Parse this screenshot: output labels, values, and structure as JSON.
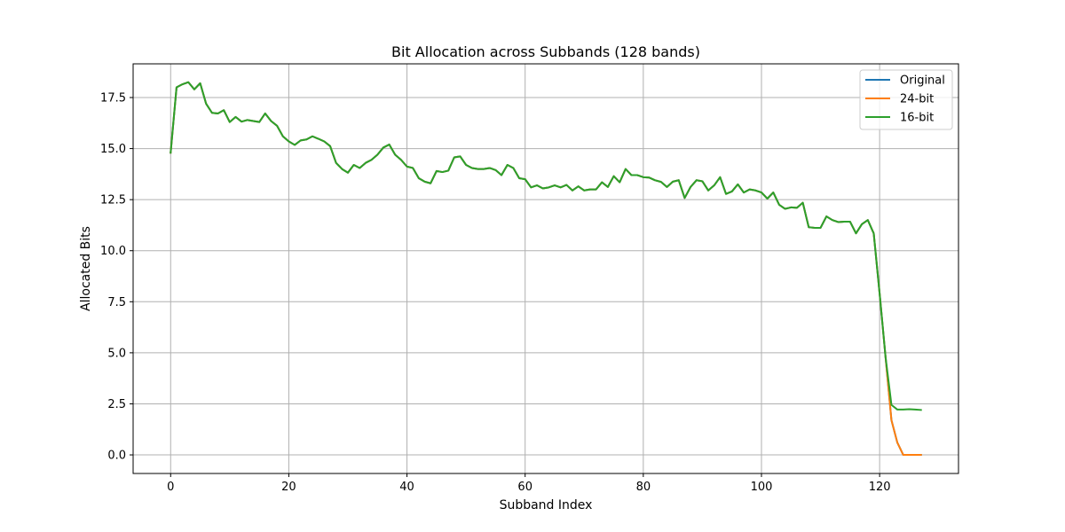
{
  "chart_data": {
    "type": "line",
    "title": "Bit Allocation across Subbands (128 bands)",
    "xlabel": "Subband Index",
    "ylabel": "Allocated Bits",
    "xlim": [
      -6.35,
      133.35
    ],
    "ylim": [
      -0.91,
      19.15
    ],
    "xticks": [
      0,
      20,
      40,
      60,
      80,
      100,
      120
    ],
    "yticks": [
      0.0,
      2.5,
      5.0,
      7.5,
      10.0,
      12.5,
      15.0,
      17.5
    ],
    "xtick_labels": [
      "0",
      "20",
      "40",
      "60",
      "80",
      "100",
      "120"
    ],
    "ytick_labels": [
      "0.0",
      "2.5",
      "5.0",
      "7.5",
      "10.0",
      "12.5",
      "15.0",
      "17.5"
    ],
    "grid": true,
    "legend_position": "top-right",
    "x": [
      0,
      1,
      2,
      3,
      4,
      5,
      6,
      7,
      8,
      9,
      10,
      11,
      12,
      13,
      14,
      15,
      16,
      17,
      18,
      19,
      20,
      21,
      22,
      23,
      24,
      25,
      26,
      27,
      28,
      29,
      30,
      31,
      32,
      33,
      34,
      35,
      36,
      37,
      38,
      39,
      40,
      41,
      42,
      43,
      44,
      45,
      46,
      47,
      48,
      49,
      50,
      51,
      52,
      53,
      54,
      55,
      56,
      57,
      58,
      59,
      60,
      61,
      62,
      63,
      64,
      65,
      66,
      67,
      68,
      69,
      70,
      71,
      72,
      73,
      74,
      75,
      76,
      77,
      78,
      79,
      80,
      81,
      82,
      83,
      84,
      85,
      86,
      87,
      88,
      89,
      90,
      91,
      92,
      93,
      94,
      95,
      96,
      97,
      98,
      99,
      100,
      101,
      102,
      103,
      104,
      105,
      106,
      107,
      108,
      109,
      110,
      111,
      112,
      113,
      114,
      115,
      116,
      117,
      118,
      119,
      120,
      121,
      122,
      123,
      124,
      125,
      126,
      127
    ],
    "series": [
      {
        "name": "Original",
        "color": "#1f77b4",
        "values": [
          14.8,
          18.0,
          18.15,
          18.25,
          17.9,
          18.2,
          17.2,
          16.75,
          16.72,
          16.88,
          16.3,
          16.55,
          16.32,
          16.4,
          16.35,
          16.3,
          16.72,
          16.35,
          16.12,
          15.6,
          15.35,
          15.18,
          15.4,
          15.45,
          15.6,
          15.48,
          15.35,
          15.12,
          14.3,
          14.0,
          13.82,
          14.2,
          14.05,
          14.3,
          14.45,
          14.7,
          15.05,
          15.2,
          14.7,
          14.45,
          14.12,
          14.05,
          13.55,
          13.38,
          13.3,
          13.9,
          13.85,
          13.92,
          14.57,
          14.62,
          14.2,
          14.05,
          14.0,
          14.0,
          14.05,
          13.95,
          13.7,
          14.2,
          14.05,
          13.55,
          13.5,
          13.1,
          13.2,
          13.05,
          13.1,
          13.2,
          13.1,
          13.22,
          12.95,
          13.15,
          12.95,
          13.0,
          13.0,
          13.35,
          13.12,
          13.65,
          13.35,
          14.0,
          13.7,
          13.7,
          13.6,
          13.58,
          13.45,
          13.37,
          13.12,
          13.38,
          13.45,
          12.58,
          13.12,
          13.45,
          13.4,
          12.95,
          13.2,
          13.6,
          12.78,
          12.9,
          13.25,
          12.85,
          13.0,
          12.95,
          12.85,
          12.55,
          12.85,
          12.25,
          12.05,
          12.12,
          12.1,
          12.35,
          11.15,
          11.12,
          11.12,
          11.68,
          11.5,
          11.4,
          11.42,
          11.42,
          10.85,
          11.3,
          11.5,
          10.85,
          7.9,
          4.8,
          1.7,
          0.6,
          0.0,
          0.0,
          0.0,
          0.0
        ]
      },
      {
        "name": "24-bit",
        "color": "#ff7f0e",
        "values": [
          14.8,
          18.0,
          18.15,
          18.25,
          17.9,
          18.2,
          17.2,
          16.75,
          16.72,
          16.88,
          16.3,
          16.55,
          16.32,
          16.4,
          16.35,
          16.3,
          16.72,
          16.35,
          16.12,
          15.6,
          15.35,
          15.18,
          15.4,
          15.45,
          15.6,
          15.48,
          15.35,
          15.12,
          14.3,
          14.0,
          13.82,
          14.2,
          14.05,
          14.3,
          14.45,
          14.7,
          15.05,
          15.2,
          14.7,
          14.45,
          14.12,
          14.05,
          13.55,
          13.38,
          13.3,
          13.9,
          13.85,
          13.92,
          14.57,
          14.62,
          14.2,
          14.05,
          14.0,
          14.0,
          14.05,
          13.95,
          13.7,
          14.2,
          14.05,
          13.55,
          13.5,
          13.1,
          13.2,
          13.05,
          13.1,
          13.2,
          13.1,
          13.22,
          12.95,
          13.15,
          12.95,
          13.0,
          13.0,
          13.35,
          13.12,
          13.65,
          13.35,
          14.0,
          13.7,
          13.7,
          13.6,
          13.58,
          13.45,
          13.37,
          13.12,
          13.38,
          13.45,
          12.58,
          13.12,
          13.45,
          13.4,
          12.95,
          13.2,
          13.6,
          12.78,
          12.9,
          13.25,
          12.85,
          13.0,
          12.95,
          12.85,
          12.55,
          12.85,
          12.25,
          12.05,
          12.12,
          12.1,
          12.35,
          11.15,
          11.12,
          11.12,
          11.68,
          11.5,
          11.4,
          11.42,
          11.42,
          10.85,
          11.3,
          11.5,
          10.85,
          7.9,
          4.8,
          1.7,
          0.6,
          0.0,
          0.0,
          0.0,
          0.0
        ]
      },
      {
        "name": "16-bit",
        "color": "#2ca02c",
        "values": [
          14.8,
          18.0,
          18.15,
          18.25,
          17.9,
          18.2,
          17.2,
          16.75,
          16.72,
          16.88,
          16.3,
          16.55,
          16.32,
          16.4,
          16.35,
          16.3,
          16.72,
          16.35,
          16.12,
          15.6,
          15.35,
          15.18,
          15.4,
          15.45,
          15.6,
          15.48,
          15.35,
          15.12,
          14.3,
          14.0,
          13.82,
          14.2,
          14.05,
          14.3,
          14.45,
          14.7,
          15.05,
          15.2,
          14.7,
          14.45,
          14.12,
          14.05,
          13.55,
          13.38,
          13.3,
          13.9,
          13.85,
          13.92,
          14.57,
          14.62,
          14.2,
          14.05,
          14.0,
          14.0,
          14.05,
          13.95,
          13.7,
          14.2,
          14.05,
          13.55,
          13.5,
          13.1,
          13.2,
          13.05,
          13.1,
          13.2,
          13.1,
          13.22,
          12.95,
          13.15,
          12.95,
          13.0,
          13.0,
          13.35,
          13.12,
          13.65,
          13.35,
          14.0,
          13.7,
          13.7,
          13.6,
          13.58,
          13.45,
          13.37,
          13.12,
          13.38,
          13.45,
          12.58,
          13.12,
          13.45,
          13.4,
          12.95,
          13.2,
          13.6,
          12.78,
          12.9,
          13.25,
          12.85,
          13.0,
          12.95,
          12.85,
          12.55,
          12.85,
          12.25,
          12.05,
          12.12,
          12.1,
          12.35,
          11.15,
          11.12,
          11.12,
          11.68,
          11.5,
          11.4,
          11.42,
          11.42,
          10.85,
          11.3,
          11.5,
          10.85,
          7.9,
          4.8,
          2.45,
          2.22,
          2.22,
          2.24,
          2.22,
          2.2
        ]
      }
    ]
  }
}
